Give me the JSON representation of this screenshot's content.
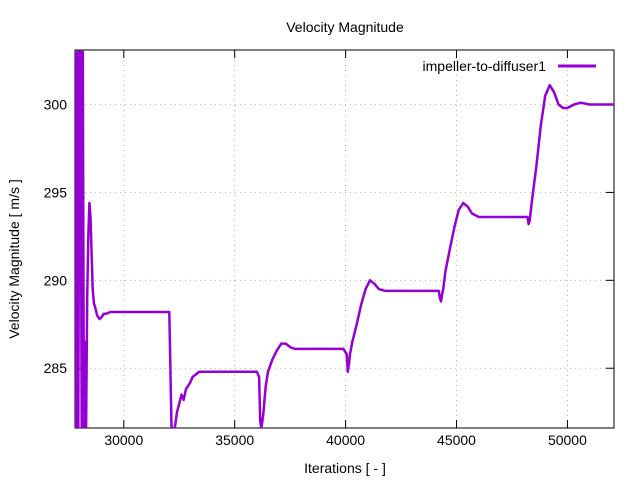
{
  "chart_data": {
    "type": "line",
    "title": "Velocity Magnitude",
    "xlabel": "Iterations [ - ]",
    "ylabel": "Velocity Magnitude [ m/s ]",
    "xlim": [
      27800,
      52100
    ],
    "ylim": [
      281.6,
      303.1
    ],
    "xticks": [
      30000,
      35000,
      40000,
      45000,
      50000
    ],
    "yticks": [
      285,
      290,
      295,
      300
    ],
    "grid": true,
    "legend_position": "top-right",
    "series": [
      {
        "name": "impeller-to-diffuser1",
        "color": "#9400d3",
        "x": [
          27800,
          27850,
          27900,
          27950,
          28000,
          28050,
          28100,
          28150,
          28200,
          28250,
          28300,
          28350,
          28400,
          28450,
          28500,
          28550,
          28600,
          28650,
          28700,
          28800,
          28900,
          29000,
          29100,
          29200,
          29400,
          29600,
          29800,
          30000,
          30300,
          30600,
          31000,
          31400,
          31800,
          32050,
          32100,
          32150,
          32200,
          32300,
          32400,
          32500,
          32600,
          32700,
          32800,
          32900,
          33000,
          33100,
          33200,
          33300,
          33400,
          33600,
          34000,
          35000,
          36000,
          36100,
          36150,
          36200,
          36250,
          36300,
          36350,
          36400,
          36500,
          36700,
          36900,
          37100,
          37300,
          37500,
          37700,
          38000,
          38500,
          39000,
          39500,
          39900,
          40050,
          40100,
          40150,
          40200,
          40300,
          40500,
          40700,
          40900,
          41100,
          41300,
          41500,
          41800,
          42500,
          43500,
          44200,
          44250,
          44300,
          44350,
          44400,
          44500,
          44700,
          44900,
          45100,
          45300,
          45500,
          45700,
          46000,
          47000,
          48000,
          48200,
          48250,
          48300,
          48400,
          48600,
          48800,
          49000,
          49200,
          49400,
          49600,
          49800,
          50000,
          50300,
          50600,
          51000,
          51500,
          52100
        ],
        "y": [
          303,
          281.6,
          303,
          281.6,
          303,
          303,
          281.6,
          303,
          281.6,
          286.5,
          281.6,
          289,
          292.5,
          294.4,
          293.6,
          291.5,
          289.5,
          288.7,
          288.5,
          288.0,
          287.8,
          287.9,
          288.1,
          288.1,
          288.2,
          288.2,
          288.2,
          288.2,
          288.2,
          288.2,
          288.2,
          288.2,
          288.2,
          288.2,
          285.0,
          281.6,
          281.6,
          281.6,
          282.5,
          283.0,
          283.5,
          283.2,
          283.8,
          284.0,
          284.2,
          284.5,
          284.6,
          284.7,
          284.8,
          284.8,
          284.8,
          284.8,
          284.8,
          284.5,
          282.0,
          281.6,
          282.0,
          282.5,
          283.3,
          284.0,
          284.8,
          285.5,
          286.0,
          286.4,
          286.4,
          286.2,
          286.1,
          286.1,
          286.1,
          286.1,
          286.1,
          286.1,
          285.8,
          284.8,
          285.2,
          285.8,
          286.5,
          287.5,
          288.6,
          289.5,
          290.0,
          289.8,
          289.5,
          289.4,
          289.4,
          289.4,
          289.4,
          289.0,
          288.8,
          289.2,
          289.5,
          290.5,
          291.8,
          293.0,
          294.0,
          294.4,
          294.2,
          293.8,
          293.6,
          293.6,
          293.6,
          293.6,
          293.2,
          293.4,
          294.5,
          296.5,
          298.8,
          300.5,
          301.1,
          300.7,
          300.0,
          299.8,
          299.8,
          300.0,
          300.1,
          300.0,
          300.0,
          300.0
        ]
      }
    ]
  }
}
